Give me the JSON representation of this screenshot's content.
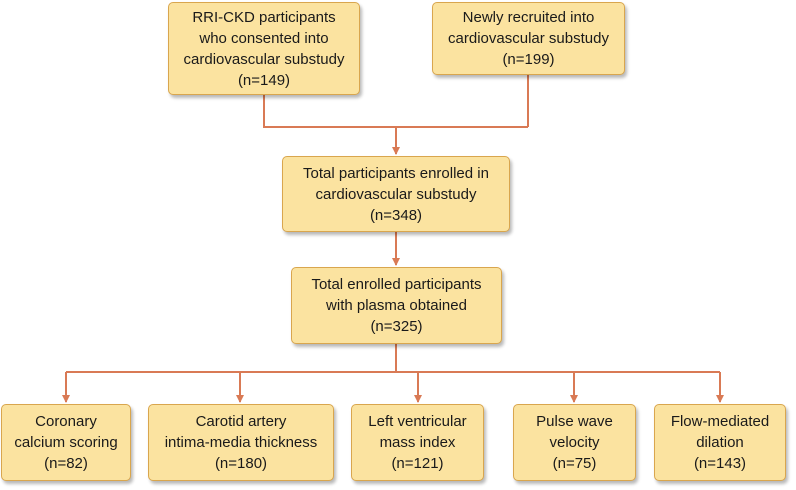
{
  "colors": {
    "box_fill": "#fbe3a0",
    "box_border": "#d9a64e",
    "connector": "#d97a55"
  },
  "boxes": {
    "rri_ckd": [
      "RRI-CKD participants",
      "who consented into",
      "cardiovascular substudy",
      "(n=149)"
    ],
    "newly_recruited": [
      "Newly recruited into",
      "cardiovascular substudy",
      "(n=199)"
    ],
    "total_enrolled": [
      "Total participants enrolled in",
      "cardiovascular substudy",
      "(n=348)"
    ],
    "plasma": [
      "Total enrolled participants",
      "with plasma obtained",
      "(n=325)"
    ],
    "coronary": [
      "Coronary",
      "calcium scoring",
      "(n=82)"
    ],
    "carotid": [
      "Carotid artery",
      "intima-media thickness",
      "(n=180)"
    ],
    "lv_mass": [
      "Left ventricular",
      "mass index",
      "(n=121)"
    ],
    "pwv": [
      "Pulse wave",
      "velocity",
      "(n=75)"
    ],
    "fmd": [
      "Flow-mediated",
      "dilation",
      "(n=143)"
    ]
  }
}
